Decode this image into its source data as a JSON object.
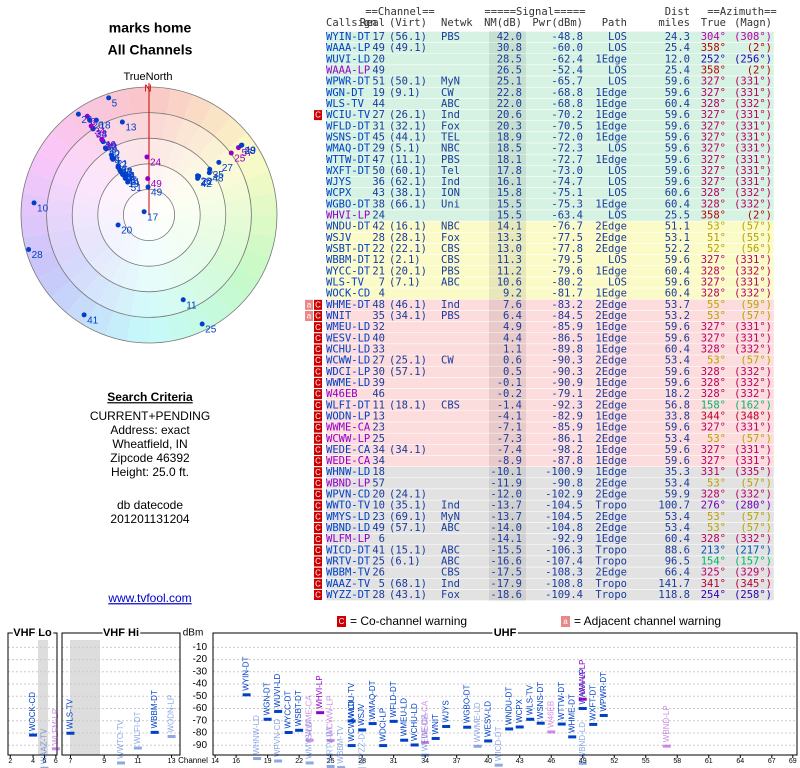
{
  "header": {
    "title": "marks home",
    "subtitle": "All Channels"
  },
  "polar": {
    "north_label": "TrueNorth",
    "north_mark": "N"
  },
  "search": {
    "title": "Search Criteria",
    "lines": [
      "CURRENT+PENDING",
      "Address: exact",
      "Wheatfield, IN",
      "Zipcode 46392",
      "Height: 25.0 ft."
    ],
    "datecode_label": "db datecode",
    "datecode": "201201131204",
    "link": "www.tvfool.com"
  },
  "table": {
    "group_headers": [
      "==Channel==",
      "=====Signal=====",
      "Dist",
      "==Azimuth=="
    ],
    "columns": [
      "Callsign",
      "Real",
      "(Virt)",
      "Netwk",
      "NM(dB)",
      "Pwr(dBm)",
      "Path",
      "miles",
      "True",
      "(Magn)"
    ],
    "rows": [
      [
        "WYIN-DT",
        17,
        "(56.1)",
        "PBS",
        "42.0",
        "-48.8",
        "LOS",
        "24.3",
        "304°",
        "(308°)"
      ],
      [
        "WAAA-LP",
        49,
        "(49.1)",
        null,
        "30.8",
        "-60.0",
        "LOS",
        "25.4",
        "358°",
        "(2°)"
      ],
      [
        "WUVI-LD",
        20,
        null,
        null,
        "28.5",
        "-62.4",
        "1Edge",
        "12.0",
        "252°",
        "(256°)"
      ],
      [
        "WAAA-LP",
        49,
        null,
        null,
        "26.5",
        "-52.4",
        "LOS",
        "25.4",
        "358°",
        "(2°)"
      ],
      [
        "WPWR-DT",
        51,
        "(50.1)",
        "MyN",
        "25.1",
        "-65.7",
        "LOS",
        "59.6",
        "327°",
        "(331°)"
      ],
      [
        "WGN-DT",
        19,
        "(9.1)",
        "CW",
        "22.8",
        "-68.8",
        "1Edge",
        "59.6",
        "327°",
        "(331°)"
      ],
      [
        "WLS-TV",
        44,
        null,
        "ABC",
        "22.0",
        "-68.8",
        "1Edge",
        "60.4",
        "328°",
        "(332°)"
      ],
      [
        "WCIU-TV",
        27,
        "(26.1)",
        "Ind",
        "20.6",
        "-70.2",
        "1Edge",
        "59.6",
        "327°",
        "(331°)"
      ],
      [
        "WFLD-DT",
        31,
        "(32.1)",
        "Fox",
        "20.3",
        "-70.5",
        "1Edge",
        "59.6",
        "327°",
        "(331°)"
      ],
      [
        "WSNS-DT",
        45,
        "(44.1)",
        "TEL",
        "18.9",
        "-72.0",
        "1Edge",
        "59.6",
        "327°",
        "(331°)"
      ],
      [
        "WMAQ-DT",
        29,
        "(5.1)",
        "NBC",
        "18.5",
        "-72.3",
        "LOS",
        "59.6",
        "327°",
        "(331°)"
      ],
      [
        "WTTW-DT",
        47,
        "(11.1)",
        "PBS",
        "18.1",
        "-72.7",
        "1Edge",
        "59.6",
        "327°",
        "(331°)"
      ],
      [
        "WXFT-DT",
        50,
        "(60.1)",
        "Tel",
        "17.8",
        "-73.0",
        "LOS",
        "59.6",
        "327°",
        "(331°)"
      ],
      [
        "WJYS",
        36,
        "(62.1)",
        "Ind",
        "16.1",
        "-74.7",
        "LOS",
        "59.6",
        "327°",
        "(331°)"
      ],
      [
        "WCPX",
        43,
        "(38.1)",
        "ION",
        "15.8",
        "-75.1",
        "LOS",
        "60.6",
        "328°",
        "(332°)"
      ],
      [
        "WGBO-DT",
        38,
        "(66.1)",
        "Uni",
        "15.5",
        "-75.3",
        "1Edge",
        "60.4",
        "328°",
        "(332°)"
      ],
      [
        "WHVI-LP",
        24,
        null,
        null,
        "15.5",
        "-63.4",
        "LOS",
        "25.5",
        "358°",
        "(2°)"
      ],
      [
        "WNDU-DT",
        42,
        "(16.1)",
        "NBC",
        "14.1",
        "-76.7",
        "2Edge",
        "51.1",
        "53°",
        "(57°)"
      ],
      [
        "WSJV",
        28,
        "(28.1)",
        "Fox",
        "13.3",
        "-77.5",
        "2Edge",
        "53.1",
        "51°",
        "(55°)"
      ],
      [
        "WSBT-DT",
        22,
        "(22.1)",
        "CBS",
        "13.0",
        "-77.8",
        "2Edge",
        "52.2",
        "52°",
        "(56°)"
      ],
      [
        "WBBM-DT",
        12,
        "(2.1)",
        "CBS",
        "11.3",
        "-79.5",
        "LOS",
        "59.6",
        "327°",
        "(331°)"
      ],
      [
        "WYCC-DT",
        21,
        "(20.1)",
        "PBS",
        "11.2",
        "-79.6",
        "1Edge",
        "60.4",
        "328°",
        "(332°)"
      ],
      [
        "WLS-TV",
        7,
        "(7.1)",
        "ABC",
        "10.6",
        "-80.2",
        "LOS",
        "59.6",
        "327°",
        "(331°)"
      ],
      [
        "WOCK-CD",
        4,
        null,
        null,
        "9.2",
        "-81.7",
        "1Edge",
        "60.4",
        "328°",
        "(332°)"
      ],
      [
        "WHME-DT",
        48,
        "(46.1)",
        "Ind",
        "7.6",
        "-83.2",
        "2Edge",
        "53.7",
        "55°",
        "(59°)"
      ],
      [
        "WNIT",
        35,
        "(34.1)",
        "PBS",
        "6.4",
        "-84.5",
        "2Edge",
        "53.2",
        "53°",
        "(57°)"
      ],
      [
        "WMEU-LD",
        32,
        null,
        null,
        "4.9",
        "-85.9",
        "1Edge",
        "59.6",
        "327°",
        "(331°)"
      ],
      [
        "WESV-LD",
        40,
        null,
        null,
        "4.4",
        "-86.5",
        "1Edge",
        "59.6",
        "327°",
        "(331°)"
      ],
      [
        "WCHU-LD",
        33,
        null,
        null,
        "1.1",
        "-89.8",
        "1Edge",
        "60.4",
        "328°",
        "(332°)"
      ],
      [
        "WCWW-LD",
        27,
        "(25.1)",
        "CW",
        "0.6",
        "-90.3",
        "2Edge",
        "53.4",
        "53°",
        "(57°)"
      ],
      [
        "WDCI-LP",
        30,
        "(57.1)",
        null,
        "0.5",
        "-90.3",
        "2Edge",
        "59.6",
        "328°",
        "(332°)"
      ],
      [
        "WWME-LD",
        39,
        null,
        null,
        "-0.1",
        "-90.9",
        "1Edge",
        "59.6",
        "328°",
        "(332°)"
      ],
      [
        "W46EB",
        46,
        null,
        null,
        "-0.2",
        "-79.1",
        "2Edge",
        "18.2",
        "328°",
        "(332°)"
      ],
      [
        "WLFI-DT",
        11,
        "(18.1)",
        "CBS",
        "-1.4",
        "-92.3",
        "2Edge",
        "56.8",
        "158°",
        "(162°)"
      ],
      [
        "WODN-LP",
        13,
        null,
        null,
        "-4.1",
        "-82.9",
        "1Edge",
        "33.8",
        "344°",
        "(348°)"
      ],
      [
        "WWME-CA",
        23,
        null,
        null,
        "-7.1",
        "-85.9",
        "1Edge",
        "59.6",
        "327°",
        "(331°)"
      ],
      [
        "WCWW-LP",
        25,
        null,
        null,
        "-7.3",
        "-86.1",
        "2Edge",
        "53.4",
        "53°",
        "(57°)"
      ],
      [
        "WEDE-CA",
        34,
        "(34.1)",
        null,
        "-7.4",
        "-98.2",
        "1Edge",
        "59.6",
        "327°",
        "(331°)"
      ],
      [
        "WEDE-CA",
        34,
        null,
        null,
        "-8.9",
        "-87.8",
        "1Edge",
        "59.6",
        "327°",
        "(331°)"
      ],
      [
        "WHNW-LD",
        18,
        null,
        null,
        "-10.1",
        "-100.9",
        "1Edge",
        "35.3",
        "331°",
        "(335°)"
      ],
      [
        "WBND-LP",
        57,
        null,
        null,
        "-11.9",
        "-90.8",
        "2Edge",
        "53.4",
        "53°",
        "(57°)"
      ],
      [
        "WPVN-CD",
        20,
        "(24.1)",
        null,
        "-12.0",
        "-102.9",
        "2Edge",
        "59.9",
        "328°",
        "(332°)"
      ],
      [
        "WWTO-TV",
        10,
        "(35.1)",
        "Ind",
        "-13.7",
        "-104.5",
        "Tropo",
        "100.7",
        "276°",
        "(280°)"
      ],
      [
        "WMYS-LD",
        23,
        "(69.1)",
        "MyN",
        "-13.7",
        "-104.5",
        "2Edge",
        "53.4",
        "53°",
        "(57°)"
      ],
      [
        "WBND-LD",
        49,
        "(57.1)",
        "ABC",
        "-14.0",
        "-104.8",
        "2Edge",
        "53.4",
        "53°",
        "(57°)"
      ],
      [
        "WLFM-LP",
        6,
        null,
        null,
        "-14.1",
        "-92.9",
        "1Edge",
        "60.4",
        "328°",
        "(332°)"
      ],
      [
        "WICD-DT",
        41,
        "(15.1)",
        "ABC",
        "-15.5",
        "-106.3",
        "Tropo",
        "88.6",
        "213°",
        "(217°)"
      ],
      [
        "WRTV-DT",
        25,
        "(6.1)",
        "ABC",
        "-16.6",
        "-107.4",
        "Tropo",
        "96.5",
        "154°",
        "(157°)"
      ],
      [
        "WBBM-TV",
        26,
        null,
        "CBS",
        "-17.5",
        "-108.3",
        "2Edge",
        "66.4",
        "325°",
        "(329°)"
      ],
      [
        "WAAZ-TV",
        5,
        "(68.1)",
        "Ind",
        "-17.9",
        "-108.8",
        "Tropo",
        "141.7",
        "341°",
        "(345°)"
      ],
      [
        "WYZZ-DT",
        28,
        "(43.1)",
        "Fox",
        "-18.6",
        "-109.4",
        "Tropo",
        "118.8",
        "254°",
        "(258°)"
      ]
    ],
    "analog_rows": [
      3,
      16,
      32,
      35,
      36,
      38,
      40,
      45
    ],
    "flags": [
      null,
      null,
      null,
      null,
      null,
      null,
      null,
      [
        "C"
      ],
      null,
      null,
      null,
      null,
      null,
      null,
      null,
      null,
      null,
      null,
      null,
      null,
      null,
      null,
      null,
      null,
      [
        "a",
        "C"
      ],
      [
        "a",
        "C"
      ],
      [
        "C"
      ],
      [
        "C"
      ],
      [
        "C"
      ],
      [
        "C"
      ],
      [
        "C"
      ],
      [
        "C"
      ],
      [
        "C"
      ],
      [
        "C"
      ],
      [
        "C"
      ],
      [
        "C"
      ],
      [
        "C"
      ],
      [
        "C"
      ],
      [
        "C"
      ],
      [
        "C"
      ],
      [
        "C"
      ],
      [
        "C"
      ],
      [
        "C"
      ],
      [
        "C"
      ],
      [
        "C"
      ],
      [
        "C"
      ],
      [
        "C"
      ],
      [
        "C"
      ],
      [
        "C"
      ],
      [
        "C"
      ],
      [
        "C"
      ]
    ]
  },
  "legend": {
    "co_channel": {
      "mark": "C",
      "text": "= Co-channel warning"
    },
    "adjacent": {
      "mark": "a",
      "text": "= Adjacent channel warning"
    }
  },
  "spectrum": {
    "y_label": "dBm",
    "x_label": "Channel",
    "ylim": [
      -98,
      -4
    ],
    "yticks": [
      -10,
      -20,
      -30,
      -40,
      -50,
      -60,
      -70,
      -80,
      -90
    ],
    "panels": [
      {
        "title": "VHF Lo",
        "xlim": [
          1.8,
          6.1
        ],
        "xticks": [
          2,
          4,
          5,
          6
        ]
      },
      {
        "title": "VHF Hi",
        "xlim": [
          6.5,
          13.5
        ],
        "xticks": [
          7,
          9,
          11,
          13
        ]
      },
      {
        "title": "UHF",
        "xlim": [
          13.8,
          69.4
        ],
        "xticks": [
          14,
          16,
          19,
          22,
          25,
          28,
          31,
          34,
          37,
          40,
          43,
          46,
          49,
          52,
          55,
          58,
          61,
          64,
          67,
          69
        ]
      }
    ]
  }
}
